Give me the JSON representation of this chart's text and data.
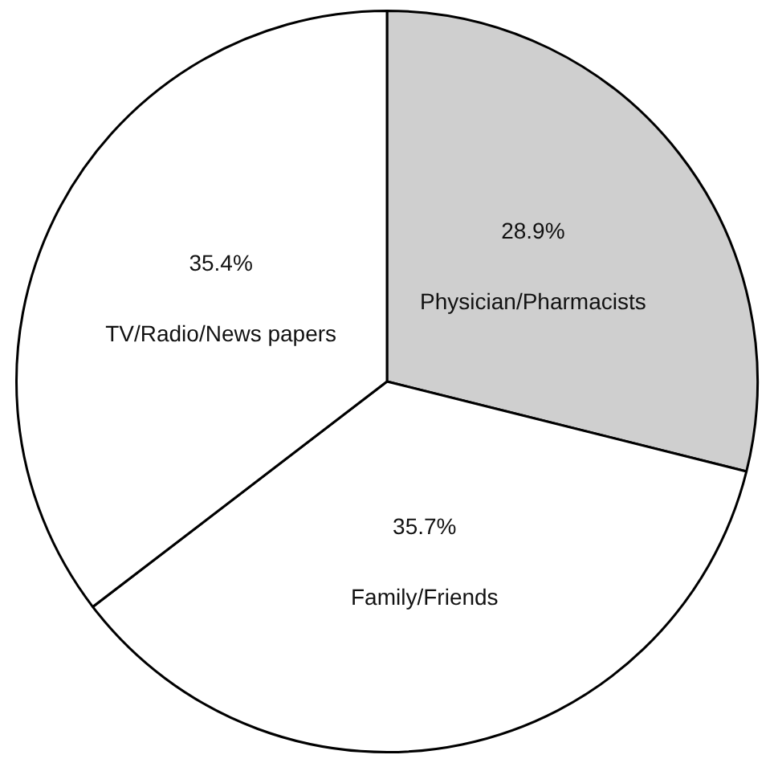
{
  "chart_data": {
    "type": "pie",
    "categories": [
      "Physician/Pharmacists",
      "Family/Friends",
      "TV/Radio/News papers"
    ],
    "values": [
      28.9,
      35.7,
      35.4
    ],
    "value_labels": [
      "28.9%",
      "35.7%",
      "35.4%"
    ],
    "colors": [
      "#cfcfcf",
      "#ffffff",
      "#ffffff"
    ],
    "legend": false
  }
}
